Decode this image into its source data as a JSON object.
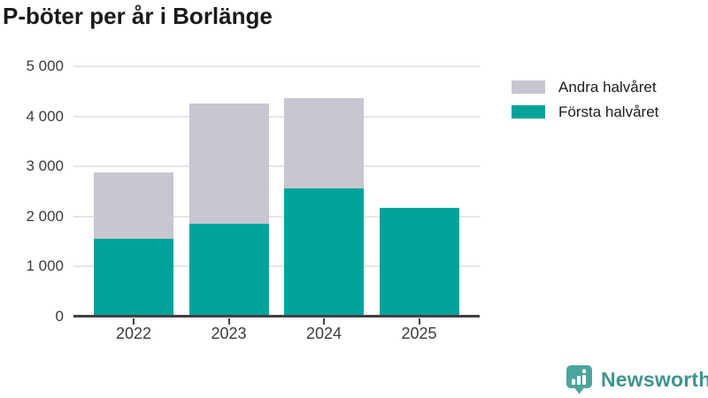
{
  "title": "P-böter per år i Borlänge",
  "chart_data": {
    "type": "bar",
    "stacked": true,
    "title": "P-böter per år i Borlänge",
    "categories": [
      "2022",
      "2023",
      "2024",
      "2025"
    ],
    "series": [
      {
        "name": "Första halvåret",
        "color": "#00a39b",
        "values": [
          1550,
          1850,
          2560,
          2170
        ]
      },
      {
        "name": "Andra halvåret",
        "color": "#c8c6d0",
        "values": [
          1330,
          2400,
          1810,
          0
        ]
      }
    ],
    "totals": [
      2880,
      4250,
      4370,
      2170
    ],
    "xlabel": "",
    "ylabel": "",
    "ylim": [
      0,
      5000
    ],
    "yticks": [
      {
        "value": 0,
        "label": "0"
      },
      {
        "value": 1000,
        "label": "1 000"
      },
      {
        "value": 2000,
        "label": "2 000"
      },
      {
        "value": 3000,
        "label": "3 000"
      },
      {
        "value": 4000,
        "label": "4 000"
      },
      {
        "value": 5000,
        "label": "5 000"
      }
    ],
    "grid": true,
    "legend_position": "top-right"
  },
  "legend": {
    "items": [
      {
        "label": "Andra halvåret",
        "color": "#c8c6d0"
      },
      {
        "label": "Första halvåret",
        "color": "#00a39b"
      }
    ]
  },
  "logo": {
    "text": "Newsworthy",
    "text_color": "#3f948c",
    "badge_color": "#4ba59d",
    "icon": "newsworthy-badge-icon"
  },
  "colors": {
    "axis": "#414141",
    "gridline": "#e6e6e6",
    "tick_text": "#3c3c3c",
    "title_text": "#1a1a1a"
  }
}
